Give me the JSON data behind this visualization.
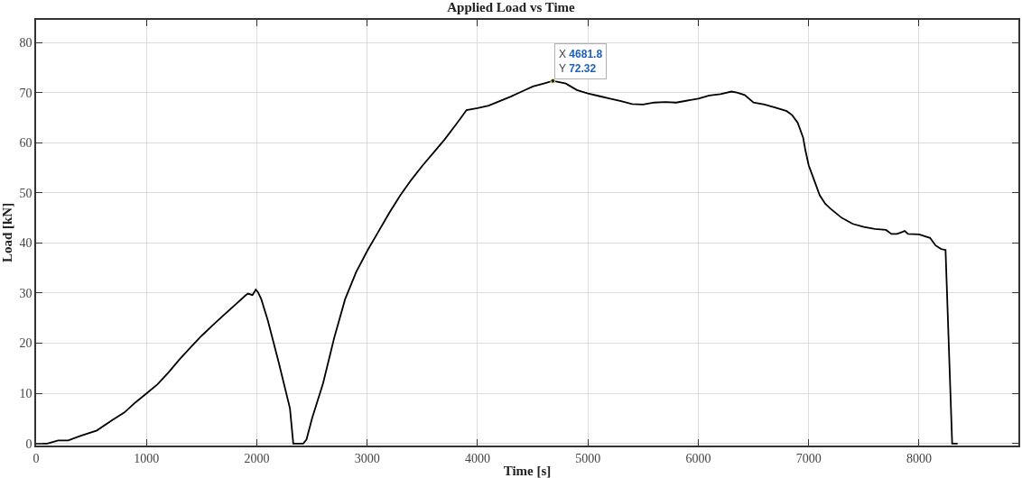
{
  "chart_data": {
    "type": "line",
    "title": "Applied Load vs Time",
    "xlabel": "Time [s]",
    "ylabel": "Load [kN]",
    "xlim": [
      0,
      8900
    ],
    "ylim": [
      -0.4,
      84.5
    ],
    "xticks": [
      0,
      1000,
      2000,
      3000,
      4000,
      5000,
      6000,
      7000,
      8000
    ],
    "yticks": [
      0,
      10,
      20,
      30,
      40,
      50,
      60,
      70,
      80
    ],
    "grid": true,
    "marker": "none",
    "line_style": "solid",
    "annotations": [
      {
        "text": "X 4681.8\nY 72.32",
        "x": 4681.8,
        "y": 72.32
      }
    ],
    "series": [
      {
        "color": "#000000",
        "x": [
          0,
          100,
          200,
          290,
          400,
          550,
          700,
          800,
          900,
          1000,
          1100,
          1200,
          1300,
          1400,
          1500,
          1600,
          1700,
          1800,
          1900,
          1920,
          1960,
          1980,
          1990,
          2010,
          2040,
          2100,
          2200,
          2300,
          2330,
          2420,
          2450,
          2500,
          2600,
          2700,
          2800,
          2900,
          3000,
          3100,
          3200,
          3300,
          3400,
          3500,
          3600,
          3700,
          3800,
          3850,
          3900,
          4000,
          4100,
          4200,
          4300,
          4400,
          4500,
          4600,
          4681.8,
          4800,
          4900,
          5000,
          5100,
          5200,
          5300,
          5400,
          5500,
          5600,
          5700,
          5800,
          6000,
          6100,
          6200,
          6300,
          6350,
          6420,
          6500,
          6600,
          6700,
          6800,
          6850,
          6900,
          6950,
          6970,
          7000,
          7050,
          7100,
          7150,
          7200,
          7300,
          7400,
          7500,
          7600,
          7700,
          7750,
          7800,
          7850,
          7870,
          7900,
          8000,
          8100,
          8150,
          8200,
          8240,
          8300,
          8350
        ],
        "values": [
          0,
          0,
          0.6,
          0.6,
          1.5,
          2.6,
          4.8,
          6.2,
          8.2,
          10,
          11.8,
          14.2,
          16.8,
          19.2,
          21.5,
          23.6,
          25.6,
          27.6,
          29.6,
          29.9,
          29.6,
          30.3,
          30.7,
          30.2,
          28.8,
          24.5,
          16,
          7,
          0,
          0,
          0.8,
          5,
          12,
          21,
          28.8,
          34.2,
          38.4,
          42.2,
          46,
          49.5,
          52.6,
          55.4,
          58,
          60.6,
          63.5,
          65,
          66.5,
          66.9,
          67.4,
          68.3,
          69.2,
          70.2,
          71.2,
          71.8,
          72.32,
          71.8,
          70.5,
          69.8,
          69.3,
          68.8,
          68.3,
          67.7,
          67.6,
          68,
          68.1,
          68,
          68.8,
          69.4,
          69.7,
          70.2,
          70,
          69.5,
          68,
          67.6,
          67,
          66.3,
          65.5,
          64,
          61,
          58.5,
          55.5,
          52.5,
          49.5,
          47.8,
          46.8,
          45,
          43.8,
          43.2,
          42.8,
          42.6,
          41.8,
          41.8,
          42.2,
          42.4,
          41.8,
          41.7,
          41,
          39.5,
          38.8,
          38.6,
          0,
          0
        ]
      }
    ]
  }
}
